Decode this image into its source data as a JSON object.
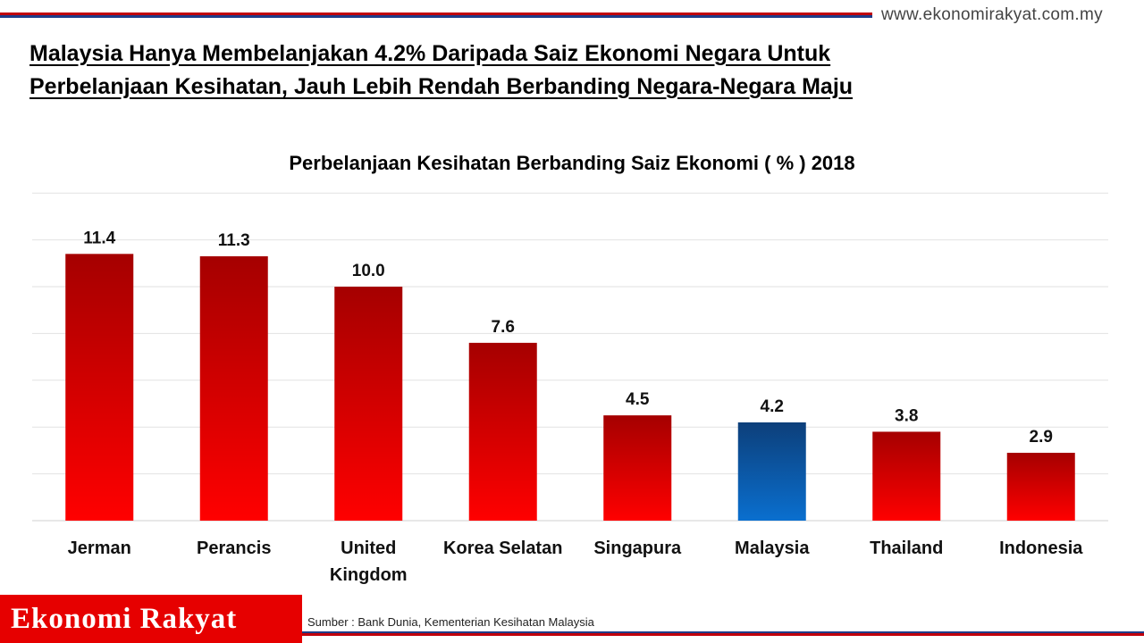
{
  "website": "www.ekonomirakyat.com.my",
  "headline": {
    "line1": "Malaysia Hanya Membelanjakan 4.2% Daripada Saiz Ekonomi Negara Untuk",
    "line2": "Perbelanjaan Kesihatan, Jauh Lebih Rendah Berbanding Negara-Negara Maju"
  },
  "brand": "Ekonomi Rakyat",
  "source": "Sumber  : Bank Dunia, Kementerian Kesihatan Malaysia",
  "colors": {
    "bar_red_top": "#a50000",
    "bar_red_bottom": "#ff0000",
    "bar_blue_top": "#0d3f7a",
    "bar_blue_bottom": "#0a6fcf",
    "brand_red": "#e60000",
    "rule_red": "#c0000c",
    "rule_blue": "#1f3c88"
  },
  "chart_data": {
    "type": "bar",
    "title": "Perbelanjaan Kesihatan Berbanding Saiz Ekonomi ( % ) 2018",
    "categories": [
      "Jerman",
      "Perancis",
      "United Kingdom",
      "Korea Selatan",
      "Singapura",
      "Malaysia",
      "Thailand",
      "Indonesia"
    ],
    "values": [
      11.4,
      11.3,
      10.0,
      7.6,
      4.5,
      4.2,
      3.8,
      2.9
    ],
    "data_labels": [
      "11.4",
      "11.3",
      "10.0",
      "7.6",
      "4.5",
      "4.2",
      "3.8",
      "2.9"
    ],
    "highlight": "Malaysia",
    "ylim": [
      0,
      14
    ],
    "grid": true,
    "y_tick_labels_shown": false
  }
}
